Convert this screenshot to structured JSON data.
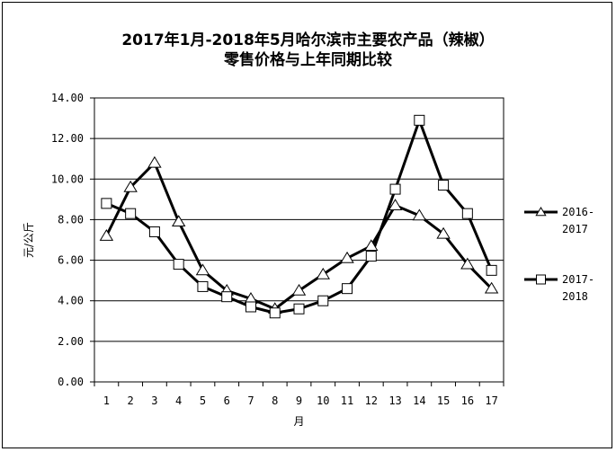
{
  "chart_data": {
    "type": "line",
    "title": "2017年1月-2018年5月哈尔滨市主要农产品（辣椒）",
    "subtitle": "零售价格与上年同期比较",
    "xlabel": "月",
    "ylabel": "元/公斤",
    "ylim": [
      0,
      14
    ],
    "ytick_step": 2,
    "yticks": [
      "0.00",
      "2.00",
      "4.00",
      "6.00",
      "8.00",
      "10.00",
      "12.00",
      "14.00"
    ],
    "categories": [
      "1",
      "2",
      "3",
      "4",
      "5",
      "6",
      "7",
      "8",
      "9",
      "10",
      "11",
      "12",
      "13",
      "14",
      "15",
      "16",
      "17"
    ],
    "grid": true,
    "legend_position": "right",
    "series": [
      {
        "name": "2016-2017",
        "legend_lines": [
          "2016-",
          "2017"
        ],
        "marker": "triangle",
        "values": [
          7.2,
          9.6,
          10.8,
          7.9,
          5.5,
          4.5,
          4.1,
          3.6,
          4.5,
          5.3,
          6.1,
          6.7,
          8.7,
          8.2,
          7.3,
          5.8,
          4.6
        ]
      },
      {
        "name": "2017-2018",
        "legend_lines": [
          "2017-",
          "2018"
        ],
        "marker": "square",
        "values": [
          8.8,
          8.3,
          7.4,
          5.8,
          4.7,
          4.2,
          3.7,
          3.4,
          3.6,
          4.0,
          4.6,
          6.2,
          9.5,
          12.9,
          9.7,
          8.3,
          5.5
        ]
      }
    ]
  }
}
